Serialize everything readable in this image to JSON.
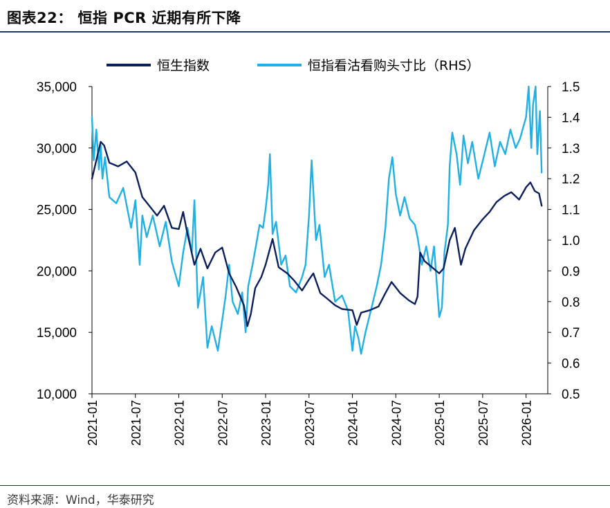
{
  "header": {
    "title": "图表22：  恒指 PCR 近期有所下降"
  },
  "footer": {
    "source": "资料来源：Wind，华泰研究"
  },
  "chart_data": {
    "type": "line",
    "legend_position": "top",
    "grid": false,
    "x_tick_labels": [
      "2021-01",
      "2021-07",
      "2022-01",
      "2022-07",
      "2023-01",
      "2023-07",
      "2024-01",
      "2024-07",
      "2025-01",
      "2025-07",
      "2026-01"
    ],
    "x_range": [
      2021.0,
      2026.25
    ],
    "y_left": {
      "range": [
        10000,
        35000
      ],
      "ticks": [
        "10,000",
        "15,000",
        "20,000",
        "25,000",
        "30,000",
        "35,000"
      ]
    },
    "y_right": {
      "range": [
        0.5,
        1.5
      ],
      "ticks": [
        "0.5",
        "0.6",
        "0.7",
        "0.8",
        "0.9",
        "1.0",
        "1.1",
        "1.2",
        "1.3",
        "1.4",
        "1.5"
      ]
    },
    "series": [
      {
        "name": "恒生指数",
        "axis": "left",
        "color": "#0b1f5c",
        "points": [
          [
            2021.0,
            27500
          ],
          [
            2021.05,
            29000
          ],
          [
            2021.1,
            30500
          ],
          [
            2021.14,
            30200
          ],
          [
            2021.2,
            28800
          ],
          [
            2021.3,
            28500
          ],
          [
            2021.4,
            28900
          ],
          [
            2021.5,
            28000
          ],
          [
            2021.58,
            26000
          ],
          [
            2021.66,
            25300
          ],
          [
            2021.75,
            24500
          ],
          [
            2021.83,
            25300
          ],
          [
            2021.92,
            23500
          ],
          [
            2022.0,
            23400
          ],
          [
            2022.05,
            24800
          ],
          [
            2022.1,
            23000
          ],
          [
            2022.18,
            20500
          ],
          [
            2022.25,
            21800
          ],
          [
            2022.33,
            20200
          ],
          [
            2022.42,
            21500
          ],
          [
            2022.5,
            21900
          ],
          [
            2022.58,
            19800
          ],
          [
            2022.66,
            18700
          ],
          [
            2022.75,
            17200
          ],
          [
            2022.79,
            15500
          ],
          [
            2022.83,
            16500
          ],
          [
            2022.88,
            18600
          ],
          [
            2022.95,
            19500
          ],
          [
            2023.0,
            20500
          ],
          [
            2023.05,
            21800
          ],
          [
            2023.08,
            22600
          ],
          [
            2023.15,
            20300
          ],
          [
            2023.25,
            19800
          ],
          [
            2023.33,
            19200
          ],
          [
            2023.42,
            18400
          ],
          [
            2023.5,
            19300
          ],
          [
            2023.55,
            19800
          ],
          [
            2023.63,
            18200
          ],
          [
            2023.7,
            17800
          ],
          [
            2023.8,
            17200
          ],
          [
            2023.88,
            16900
          ],
          [
            2024.0,
            16800
          ],
          [
            2024.05,
            15600
          ],
          [
            2024.1,
            16600
          ],
          [
            2024.2,
            16800
          ],
          [
            2024.3,
            17100
          ],
          [
            2024.38,
            18200
          ],
          [
            2024.45,
            19100
          ],
          [
            2024.55,
            18200
          ],
          [
            2024.65,
            17600
          ],
          [
            2024.72,
            17300
          ],
          [
            2024.75,
            17900
          ],
          [
            2024.78,
            21500
          ],
          [
            2024.83,
            20800
          ],
          [
            2024.9,
            20400
          ],
          [
            2025.0,
            19800
          ],
          [
            2025.05,
            20200
          ],
          [
            2025.12,
            22500
          ],
          [
            2025.18,
            23500
          ],
          [
            2025.25,
            20500
          ],
          [
            2025.3,
            21800
          ],
          [
            2025.4,
            23300
          ],
          [
            2025.5,
            24200
          ],
          [
            2025.58,
            24800
          ],
          [
            2025.66,
            25600
          ],
          [
            2025.75,
            26100
          ],
          [
            2025.83,
            26400
          ],
          [
            2025.92,
            25800
          ],
          [
            2026.0,
            26800
          ],
          [
            2026.05,
            27200
          ],
          [
            2026.1,
            26500
          ],
          [
            2026.15,
            26300
          ],
          [
            2026.18,
            25300
          ]
        ]
      },
      {
        "name": "恒指看沽看购头寸比（RHS）",
        "axis": "right",
        "color": "#1fb0e6",
        "points": [
          [
            2021.0,
            1.4
          ],
          [
            2021.02,
            1.26
          ],
          [
            2021.05,
            1.36
          ],
          [
            2021.08,
            1.23
          ],
          [
            2021.1,
            1.31
          ],
          [
            2021.12,
            1.2
          ],
          [
            2021.15,
            1.27
          ],
          [
            2021.2,
            1.14
          ],
          [
            2021.28,
            1.12
          ],
          [
            2021.36,
            1.17
          ],
          [
            2021.45,
            1.04
          ],
          [
            2021.5,
            1.13
          ],
          [
            2021.55,
            0.92
          ],
          [
            2021.58,
            1.08
          ],
          [
            2021.63,
            1.01
          ],
          [
            2021.7,
            1.08
          ],
          [
            2021.78,
            0.98
          ],
          [
            2021.85,
            1.06
          ],
          [
            2021.92,
            0.93
          ],
          [
            2022.0,
            0.85
          ],
          [
            2022.05,
            0.96
          ],
          [
            2022.1,
            1.04
          ],
          [
            2022.15,
            0.96
          ],
          [
            2022.18,
            1.13
          ],
          [
            2022.22,
            0.78
          ],
          [
            2022.28,
            0.88
          ],
          [
            2022.33,
            0.65
          ],
          [
            2022.38,
            0.72
          ],
          [
            2022.45,
            0.64
          ],
          [
            2022.5,
            0.74
          ],
          [
            2022.54,
            0.82
          ],
          [
            2022.58,
            0.92
          ],
          [
            2022.62,
            0.8
          ],
          [
            2022.68,
            0.76
          ],
          [
            2022.73,
            0.83
          ],
          [
            2022.77,
            0.7
          ],
          [
            2022.8,
            0.85
          ],
          [
            2022.85,
            0.92
          ],
          [
            2022.9,
            1.0
          ],
          [
            2022.93,
            1.05
          ],
          [
            2022.97,
            1.04
          ],
          [
            2023.0,
            1.1
          ],
          [
            2023.03,
            1.18
          ],
          [
            2023.05,
            1.28
          ],
          [
            2023.08,
            1.02
          ],
          [
            2023.12,
            1.06
          ],
          [
            2023.18,
            0.92
          ],
          [
            2023.23,
            0.95
          ],
          [
            2023.28,
            0.85
          ],
          [
            2023.35,
            0.83
          ],
          [
            2023.42,
            0.88
          ],
          [
            2023.46,
            0.92
          ],
          [
            2023.5,
            1.08
          ],
          [
            2023.53,
            1.26
          ],
          [
            2023.58,
            1.0
          ],
          [
            2023.62,
            1.05
          ],
          [
            2023.68,
            0.88
          ],
          [
            2023.73,
            0.92
          ],
          [
            2023.8,
            0.8
          ],
          [
            2023.88,
            0.82
          ],
          [
            2023.95,
            0.77
          ],
          [
            2024.0,
            0.64
          ],
          [
            2024.03,
            0.72
          ],
          [
            2024.07,
            0.68
          ],
          [
            2024.1,
            0.63
          ],
          [
            2024.15,
            0.7
          ],
          [
            2024.22,
            0.78
          ],
          [
            2024.28,
            0.85
          ],
          [
            2024.33,
            0.92
          ],
          [
            2024.38,
            1.04
          ],
          [
            2024.42,
            1.2
          ],
          [
            2024.46,
            1.27
          ],
          [
            2024.5,
            1.15
          ],
          [
            2024.55,
            1.08
          ],
          [
            2024.6,
            1.14
          ],
          [
            2024.66,
            1.07
          ],
          [
            2024.72,
            1.05
          ],
          [
            2024.75,
            1.01
          ],
          [
            2024.8,
            0.92
          ],
          [
            2024.85,
            0.98
          ],
          [
            2024.9,
            0.9
          ],
          [
            2024.94,
            0.98
          ],
          [
            2025.0,
            0.75
          ],
          [
            2025.03,
            0.78
          ],
          [
            2025.06,
            0.96
          ],
          [
            2025.1,
            1.05
          ],
          [
            2025.12,
            1.24
          ],
          [
            2025.15,
            1.35
          ],
          [
            2025.2,
            1.28
          ],
          [
            2025.24,
            1.18
          ],
          [
            2025.28,
            1.34
          ],
          [
            2025.33,
            1.25
          ],
          [
            2025.38,
            1.32
          ],
          [
            2025.45,
            1.2
          ],
          [
            2025.52,
            1.28
          ],
          [
            2025.58,
            1.35
          ],
          [
            2025.64,
            1.24
          ],
          [
            2025.7,
            1.32
          ],
          [
            2025.76,
            1.28
          ],
          [
            2025.82,
            1.36
          ],
          [
            2025.88,
            1.3
          ],
          [
            2025.93,
            1.33
          ],
          [
            2026.0,
            1.4
          ],
          [
            2026.03,
            1.5
          ],
          [
            2026.06,
            1.3
          ],
          [
            2026.08,
            1.44
          ],
          [
            2026.11,
            1.5
          ],
          [
            2026.13,
            1.28
          ],
          [
            2026.16,
            1.42
          ],
          [
            2026.18,
            1.22
          ]
        ]
      }
    ]
  }
}
